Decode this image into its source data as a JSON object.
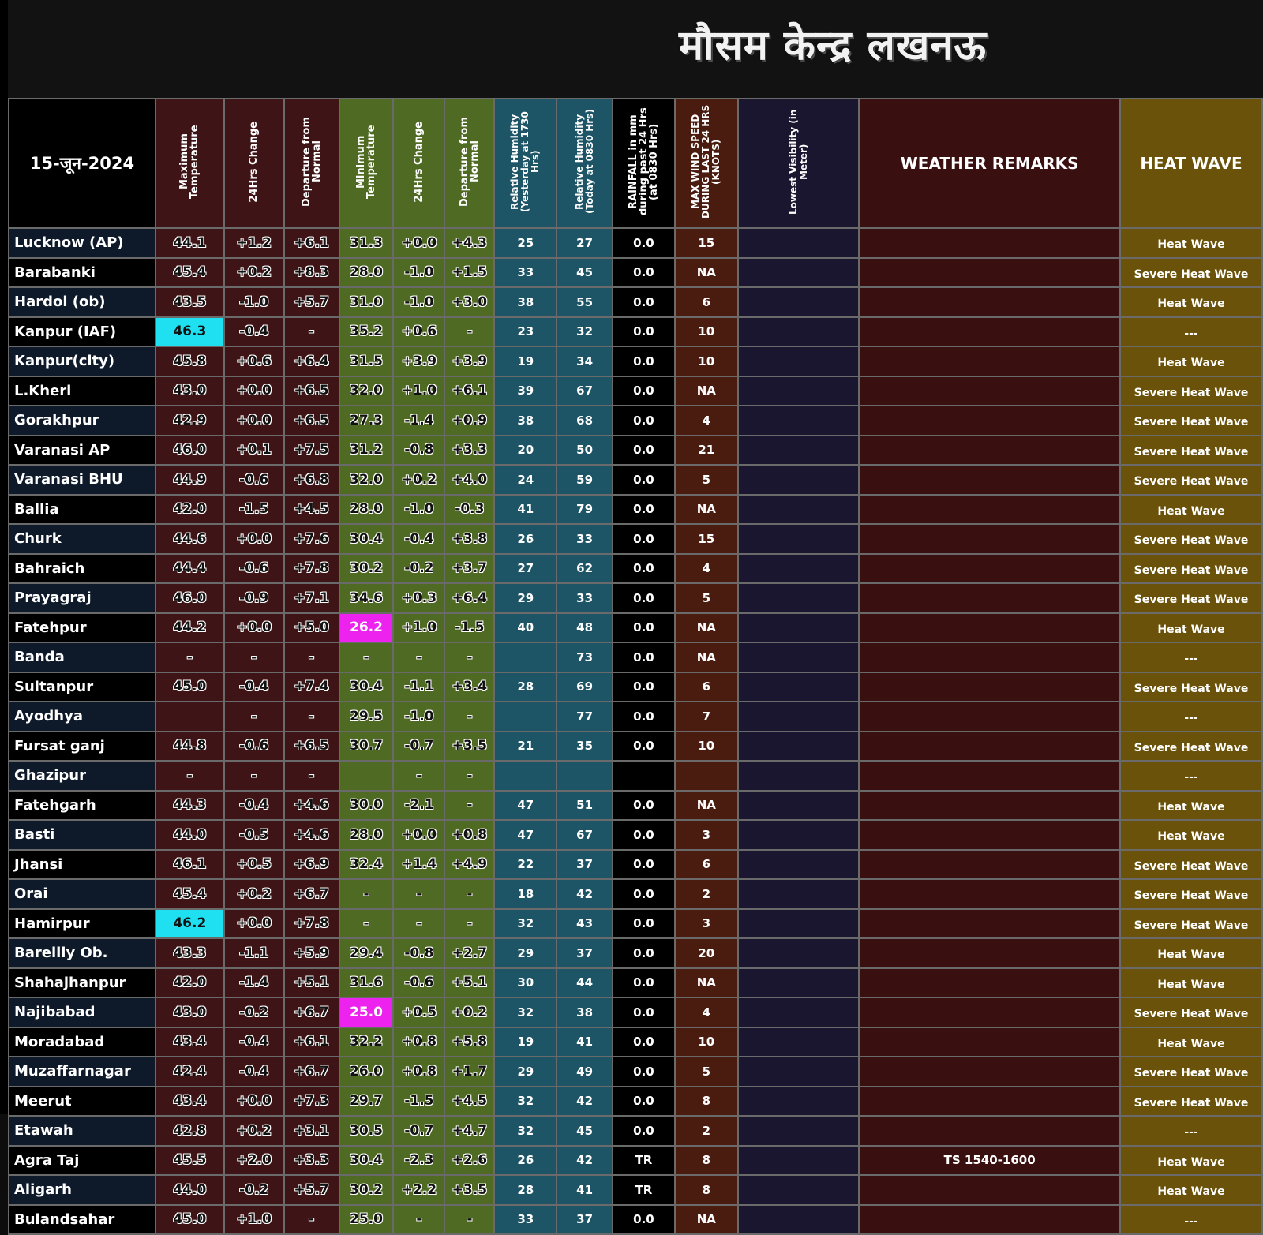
{
  "title": "मौसम केन्द्र लखनऊ",
  "date": "15-जून-2024",
  "headers": {
    "max_temp": "Maximum Temperature",
    "max_change": "24Hrs Change",
    "max_departure": "Departure from Normal",
    "min_temp": "Minimum Temperature",
    "min_change": "24Hrs Change",
    "min_departure": "Departure from Normal",
    "rh_yesterday": "Relative Humidity (Yesterday at 1730 Hrs)",
    "rh_today": "Relative Humidity (Today at 0830 Hrs)",
    "rainfall": "RAINFALL in mm during past 24 Hrs (at 0830 Hrs)",
    "wind": "MAX WIND SPEED DURING LAST 24 HRS (KNOTS)",
    "visibility": "Lowest Visibility (in Meter)",
    "remarks": "WEATHER REMARKS",
    "heatwave": "HEAT WAVE"
  },
  "highlight_colors": {
    "cyan": "#1ee0f0",
    "magenta": "#ee22ee"
  },
  "rows": [
    {
      "station": "Lucknow (AP)",
      "max": "44.1",
      "max_chg": "+1.2",
      "max_dep": "+6.1",
      "min": "31.3",
      "min_chg": "+0.0",
      "min_dep": "+4.3",
      "rh1": "25",
      "rh2": "27",
      "rain": "0.0",
      "wind": "15",
      "vis": "",
      "remarks": "",
      "hw": "Heat Wave"
    },
    {
      "station": "Barabanki",
      "max": "45.4",
      "max_chg": "+0.2",
      "max_dep": "+8.3",
      "min": "28.0",
      "min_chg": "-1.0",
      "min_dep": "+1.5",
      "rh1": "33",
      "rh2": "45",
      "rain": "0.0",
      "wind": "NA",
      "vis": "",
      "remarks": "",
      "hw": "Severe Heat Wave"
    },
    {
      "station": "Hardoi (ob)",
      "max": "43.5",
      "max_chg": "-1.0",
      "max_dep": "+5.7",
      "min": "31.0",
      "min_chg": "-1.0",
      "min_dep": "+3.0",
      "rh1": "38",
      "rh2": "55",
      "rain": "0.0",
      "wind": "6",
      "vis": "",
      "remarks": "",
      "hw": "Heat Wave"
    },
    {
      "station": "Kanpur (IAF)",
      "max": "46.3",
      "max_chg": "-0.4",
      "max_dep": "-",
      "min": "35.2",
      "min_chg": "+0.6",
      "min_dep": "-",
      "rh1": "23",
      "rh2": "32",
      "rain": "0.0",
      "wind": "10",
      "vis": "",
      "remarks": "",
      "hw": "---",
      "max_hl": "cyan"
    },
    {
      "station": "Kanpur(city)",
      "max": "45.8",
      "max_chg": "+0.6",
      "max_dep": "+6.4",
      "min": "31.5",
      "min_chg": "+3.9",
      "min_dep": "+3.9",
      "rh1": "19",
      "rh2": "34",
      "rain": "0.0",
      "wind": "10",
      "vis": "",
      "remarks": "",
      "hw": "Heat Wave"
    },
    {
      "station": "L.Kheri",
      "max": "43.0",
      "max_chg": "+0.0",
      "max_dep": "+6.5",
      "min": "32.0",
      "min_chg": "+1.0",
      "min_dep": "+6.1",
      "rh1": "39",
      "rh2": "67",
      "rain": "0.0",
      "wind": "NA",
      "vis": "",
      "remarks": "",
      "hw": "Severe Heat Wave"
    },
    {
      "station": "Gorakhpur",
      "max": "42.9",
      "max_chg": "+0.0",
      "max_dep": "+6.5",
      "min": "27.3",
      "min_chg": "-1.4",
      "min_dep": "+0.9",
      "rh1": "38",
      "rh2": "68",
      "rain": "0.0",
      "wind": "4",
      "vis": "",
      "remarks": "",
      "hw": "Severe Heat Wave"
    },
    {
      "station": "Varanasi AP",
      "max": "46.0",
      "max_chg": "+0.1",
      "max_dep": "+7.5",
      "min": "31.2",
      "min_chg": "-0.8",
      "min_dep": "+3.3",
      "rh1": "20",
      "rh2": "50",
      "rain": "0.0",
      "wind": "21",
      "vis": "",
      "remarks": "",
      "hw": "Severe Heat Wave"
    },
    {
      "station": "Varanasi BHU",
      "max": "44.9",
      "max_chg": "-0.6",
      "max_dep": "+6.8",
      "min": "32.0",
      "min_chg": "+0.2",
      "min_dep": "+4.0",
      "rh1": "24",
      "rh2": "59",
      "rain": "0.0",
      "wind": "5",
      "vis": "",
      "remarks": "",
      "hw": "Severe Heat Wave"
    },
    {
      "station": "Ballia",
      "max": "42.0",
      "max_chg": "-1.5",
      "max_dep": "+4.5",
      "min": "28.0",
      "min_chg": "-1.0",
      "min_dep": "-0.3",
      "rh1": "41",
      "rh2": "79",
      "rain": "0.0",
      "wind": "NA",
      "vis": "",
      "remarks": "",
      "hw": "Heat Wave"
    },
    {
      "station": "Churk",
      "max": "44.6",
      "max_chg": "+0.0",
      "max_dep": "+7.6",
      "min": "30.4",
      "min_chg": "-0.4",
      "min_dep": "+3.8",
      "rh1": "26",
      "rh2": "33",
      "rain": "0.0",
      "wind": "15",
      "vis": "",
      "remarks": "",
      "hw": "Severe Heat Wave"
    },
    {
      "station": "Bahraich",
      "max": "44.4",
      "max_chg": "-0.6",
      "max_dep": "+7.8",
      "min": "30.2",
      "min_chg": "-0.2",
      "min_dep": "+3.7",
      "rh1": "27",
      "rh2": "62",
      "rain": "0.0",
      "wind": "4",
      "vis": "",
      "remarks": "",
      "hw": "Severe Heat Wave"
    },
    {
      "station": "Prayagraj",
      "max": "46.0",
      "max_chg": "-0.9",
      "max_dep": "+7.1",
      "min": "34.6",
      "min_chg": "+0.3",
      "min_dep": "+6.4",
      "rh1": "29",
      "rh2": "33",
      "rain": "0.0",
      "wind": "5",
      "vis": "",
      "remarks": "",
      "hw": "Severe Heat Wave"
    },
    {
      "station": "Fatehpur",
      "max": "44.2",
      "max_chg": "+0.0",
      "max_dep": "+5.0",
      "min": "26.2",
      "min_chg": "+1.0",
      "min_dep": "-1.5",
      "rh1": "40",
      "rh2": "48",
      "rain": "0.0",
      "wind": "NA",
      "vis": "",
      "remarks": "",
      "hw": "Heat Wave",
      "min_hl": "magenta"
    },
    {
      "station": "Banda",
      "max": "-",
      "max_chg": "-",
      "max_dep": "-",
      "min": "-",
      "min_chg": "-",
      "min_dep": "-",
      "rh1": "",
      "rh2": "73",
      "rain": "0.0",
      "wind": "NA",
      "vis": "",
      "remarks": "",
      "hw": "---"
    },
    {
      "station": "Sultanpur",
      "max": "45.0",
      "max_chg": "-0.4",
      "max_dep": "+7.4",
      "min": "30.4",
      "min_chg": "-1.1",
      "min_dep": "+3.4",
      "rh1": "28",
      "rh2": "69",
      "rain": "0.0",
      "wind": "6",
      "vis": "",
      "remarks": "",
      "hw": "Severe Heat Wave"
    },
    {
      "station": "Ayodhya",
      "max": "",
      "max_chg": "-",
      "max_dep": "-",
      "min": "29.5",
      "min_chg": "-1.0",
      "min_dep": "-",
      "rh1": "",
      "rh2": "77",
      "rain": "0.0",
      "wind": "7",
      "vis": "",
      "remarks": "",
      "hw": "---"
    },
    {
      "station": "Fursat ganj",
      "max": "44.8",
      "max_chg": "-0.6",
      "max_dep": "+6.5",
      "min": "30.7",
      "min_chg": "-0.7",
      "min_dep": "+3.5",
      "rh1": "21",
      "rh2": "35",
      "rain": "0.0",
      "wind": "10",
      "vis": "",
      "remarks": "",
      "hw": "Severe Heat Wave"
    },
    {
      "station": "Ghazipur",
      "max": "-",
      "max_chg": "-",
      "max_dep": "-",
      "min": "",
      "min_chg": "-",
      "min_dep": "-",
      "rh1": "",
      "rh2": "",
      "rain": "",
      "wind": "",
      "vis": "",
      "remarks": "",
      "hw": "---"
    },
    {
      "station": "Fatehgarh",
      "max": "44.3",
      "max_chg": "-0.4",
      "max_dep": "+4.6",
      "min": "30.0",
      "min_chg": "-2.1",
      "min_dep": "-",
      "rh1": "47",
      "rh2": "51",
      "rain": "0.0",
      "wind": "NA",
      "vis": "",
      "remarks": "",
      "hw": "Heat Wave"
    },
    {
      "station": "Basti",
      "max": "44.0",
      "max_chg": "-0.5",
      "max_dep": "+4.6",
      "min": "28.0",
      "min_chg": "+0.0",
      "min_dep": "+0.8",
      "rh1": "47",
      "rh2": "67",
      "rain": "0.0",
      "wind": "3",
      "vis": "",
      "remarks": "",
      "hw": "Heat Wave"
    },
    {
      "station": "Jhansi",
      "max": "46.1",
      "max_chg": "+0.5",
      "max_dep": "+6.9",
      "min": "32.4",
      "min_chg": "+1.4",
      "min_dep": "+4.9",
      "rh1": "22",
      "rh2": "37",
      "rain": "0.0",
      "wind": "6",
      "vis": "",
      "remarks": "",
      "hw": "Severe Heat Wave"
    },
    {
      "station": "Orai",
      "max": "45.4",
      "max_chg": "+0.2",
      "max_dep": "+6.7",
      "min": "-",
      "min_chg": "-",
      "min_dep": "-",
      "rh1": "18",
      "rh2": "42",
      "rain": "0.0",
      "wind": "2",
      "vis": "",
      "remarks": "",
      "hw": "Severe Heat Wave"
    },
    {
      "station": "Hamirpur",
      "max": "46.2",
      "max_chg": "+0.0",
      "max_dep": "+7.8",
      "min": "-",
      "min_chg": "-",
      "min_dep": "-",
      "rh1": "32",
      "rh2": "43",
      "rain": "0.0",
      "wind": "3",
      "vis": "",
      "remarks": "",
      "hw": "Severe Heat Wave",
      "max_hl": "cyan"
    },
    {
      "station": "Bareilly Ob.",
      "max": "43.3",
      "max_chg": "-1.1",
      "max_dep": "+5.9",
      "min": "29.4",
      "min_chg": "-0.8",
      "min_dep": "+2.7",
      "rh1": "29",
      "rh2": "37",
      "rain": "0.0",
      "wind": "20",
      "vis": "",
      "remarks": "",
      "hw": "Heat Wave"
    },
    {
      "station": "Shahajhanpur",
      "max": "42.0",
      "max_chg": "-1.4",
      "max_dep": "+5.1",
      "min": "31.6",
      "min_chg": "-0.6",
      "min_dep": "+5.1",
      "rh1": "30",
      "rh2": "44",
      "rain": "0.0",
      "wind": "NA",
      "vis": "",
      "remarks": "",
      "hw": "Heat Wave"
    },
    {
      "station": "Najibabad",
      "max": "43.0",
      "max_chg": "-0.2",
      "max_dep": "+6.7",
      "min": "25.0",
      "min_chg": "+0.5",
      "min_dep": "+0.2",
      "rh1": "32",
      "rh2": "38",
      "rain": "0.0",
      "wind": "4",
      "vis": "",
      "remarks": "",
      "hw": "Severe Heat Wave",
      "min_hl": "magenta"
    },
    {
      "station": "Moradabad",
      "max": "43.4",
      "max_chg": "-0.4",
      "max_dep": "+6.1",
      "min": "32.2",
      "min_chg": "+0.8",
      "min_dep": "+5.8",
      "rh1": "19",
      "rh2": "41",
      "rain": "0.0",
      "wind": "10",
      "vis": "",
      "remarks": "",
      "hw": "Heat Wave"
    },
    {
      "station": "Muzaffarnagar",
      "max": "42.4",
      "max_chg": "-0.4",
      "max_dep": "+6.7",
      "min": "26.0",
      "min_chg": "+0.8",
      "min_dep": "+1.7",
      "rh1": "29",
      "rh2": "49",
      "rain": "0.0",
      "wind": "5",
      "vis": "",
      "remarks": "",
      "hw": "Severe Heat Wave"
    },
    {
      "station": "Meerut",
      "max": "43.4",
      "max_chg": "+0.0",
      "max_dep": "+7.3",
      "min": "29.7",
      "min_chg": "-1.5",
      "min_dep": "+4.5",
      "rh1": "32",
      "rh2": "42",
      "rain": "0.0",
      "wind": "8",
      "vis": "",
      "remarks": "",
      "hw": "Severe Heat Wave"
    },
    {
      "station": "Etawah",
      "max": "42.8",
      "max_chg": "+0.2",
      "max_dep": "+3.1",
      "min": "30.5",
      "min_chg": "-0.7",
      "min_dep": "+4.7",
      "rh1": "32",
      "rh2": "45",
      "rain": "0.0",
      "wind": "2",
      "vis": "",
      "remarks": "",
      "hw": "---"
    },
    {
      "station": "Agra Taj",
      "max": "45.5",
      "max_chg": "+2.0",
      "max_dep": "+3.3",
      "min": "30.4",
      "min_chg": "-2.3",
      "min_dep": "+2.6",
      "rh1": "26",
      "rh2": "42",
      "rain": "TR",
      "wind": "8",
      "vis": "",
      "remarks": "TS 1540-1600",
      "hw": "Heat Wave"
    },
    {
      "station": "Aligarh",
      "max": "44.0",
      "max_chg": "-0.2",
      "max_dep": "+5.7",
      "min": "30.2",
      "min_chg": "+2.2",
      "min_dep": "+3.5",
      "rh1": "28",
      "rh2": "41",
      "rain": "TR",
      "wind": "8",
      "vis": "",
      "remarks": "",
      "hw": "Heat Wave"
    },
    {
      "station": "Bulandsahar",
      "max": "45.0",
      "max_chg": "+1.0",
      "max_dep": "-",
      "min": "25.0",
      "min_chg": "-",
      "min_dep": "-",
      "rh1": "33",
      "rh2": "37",
      "rain": "0.0",
      "wind": "NA",
      "vis": "",
      "remarks": "",
      "hw": "---"
    }
  ]
}
